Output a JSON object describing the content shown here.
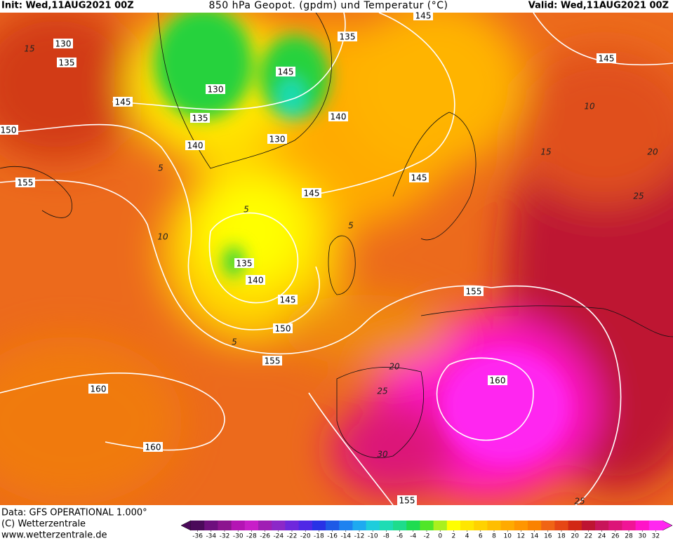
{
  "header": {
    "init": "Init: Wed,11AUG2021 00Z",
    "title": "850 hPa Geopot. (gpdm) und Temperatur (°C)",
    "valid": "Valid: Wed,11AUG2021 00Z"
  },
  "footer": {
    "lines": [
      "Data: GFS OPERATIONAL 1.000°",
      "(C) Wetterzentrale",
      "www.wetterzentrale.de"
    ]
  },
  "legend": {
    "ticks": [
      -36,
      -34,
      -32,
      -30,
      -28,
      -26,
      -24,
      -22,
      -20,
      -18,
      -16,
      -14,
      -12,
      -10,
      -8,
      -6,
      -4,
      -2,
      0,
      2,
      4,
      6,
      8,
      10,
      12,
      14,
      16,
      18,
      20,
      22,
      24,
      26,
      28,
      30,
      32
    ],
    "colors": [
      "#4b0a5a",
      "#6e0f7e",
      "#8c148f",
      "#b414b4",
      "#c81ec8",
      "#a01eb4",
      "#8c28c8",
      "#6e28dc",
      "#5028e6",
      "#2832e6",
      "#1e5ae6",
      "#1e82f0",
      "#1eaaf0",
      "#1ecddc",
      "#1edcb4",
      "#1edc8c",
      "#1edc50",
      "#50e628",
      "#aaf01e",
      "#ffff00",
      "#ffe600",
      "#ffd200",
      "#ffbe00",
      "#ffaa00",
      "#ff9600",
      "#fa8200",
      "#f06414",
      "#e64614",
      "#d22814",
      "#be1432",
      "#c8145a",
      "#dc1478",
      "#f01496",
      "#ff14c8",
      "#ff28f0"
    ]
  },
  "map": {
    "geopotential_labels": [
      130,
      135,
      145,
      150,
      155,
      130,
      135,
      140,
      145,
      135,
      145,
      140,
      130,
      145,
      145,
      135,
      140,
      145,
      150,
      155,
      155,
      160,
      160,
      160,
      155,
      145
    ],
    "temperature_labels": [
      15,
      5,
      10,
      5,
      5,
      5,
      10,
      15,
      20,
      25,
      20,
      25,
      30,
      25
    ]
  }
}
